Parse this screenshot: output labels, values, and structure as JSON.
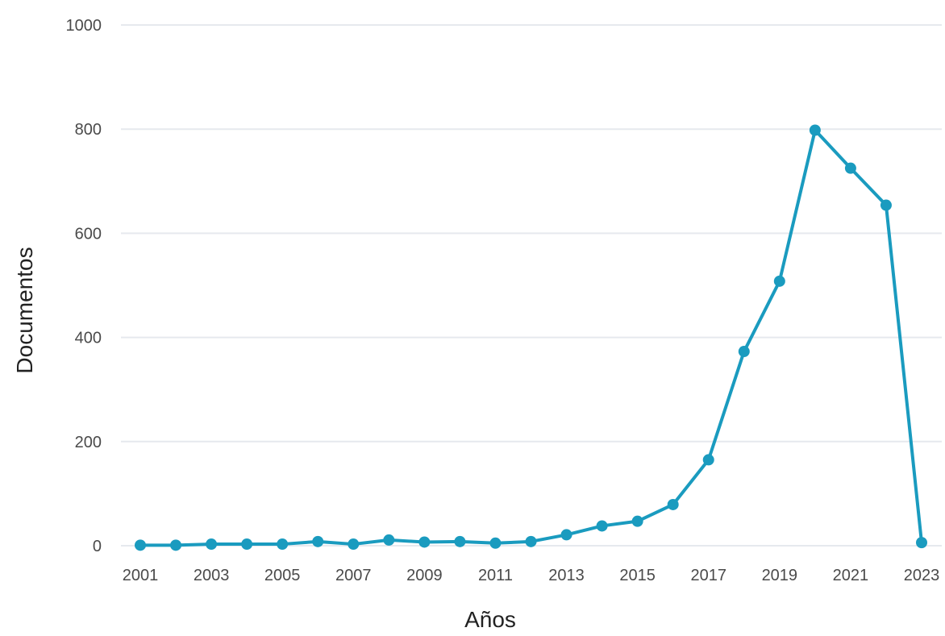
{
  "chart_data": {
    "type": "line",
    "title": "",
    "xlabel": "Años",
    "ylabel": "Documentos",
    "x": [
      2001,
      2002,
      2003,
      2004,
      2005,
      2006,
      2007,
      2008,
      2009,
      2010,
      2011,
      2012,
      2013,
      2014,
      2015,
      2016,
      2017,
      2018,
      2019,
      2020,
      2021,
      2022,
      2023
    ],
    "series": [
      {
        "values": [
          1,
          1,
          3,
          3,
          3,
          8,
          3,
          11,
          7,
          8,
          5,
          8,
          21,
          38,
          47,
          79,
          165,
          373,
          508,
          798,
          725,
          654,
          6
        ]
      }
    ],
    "xticks": [
      "2001",
      "2003",
      "2005",
      "2007",
      "2009",
      "2011",
      "2013",
      "2015",
      "2017",
      "2019",
      "2021",
      "2023"
    ],
    "yticks": [
      "0",
      "200",
      "400",
      "600",
      "800",
      "1000"
    ],
    "ylim": [
      0,
      1000
    ],
    "xlim": [
      2001,
      2023
    ],
    "grid": true,
    "legend": "none",
    "colors": {
      "line": "#1a9bbf",
      "grid": "#e6e9ee",
      "tick_text": "#4a4a4a",
      "axis_title": "#222222"
    }
  }
}
